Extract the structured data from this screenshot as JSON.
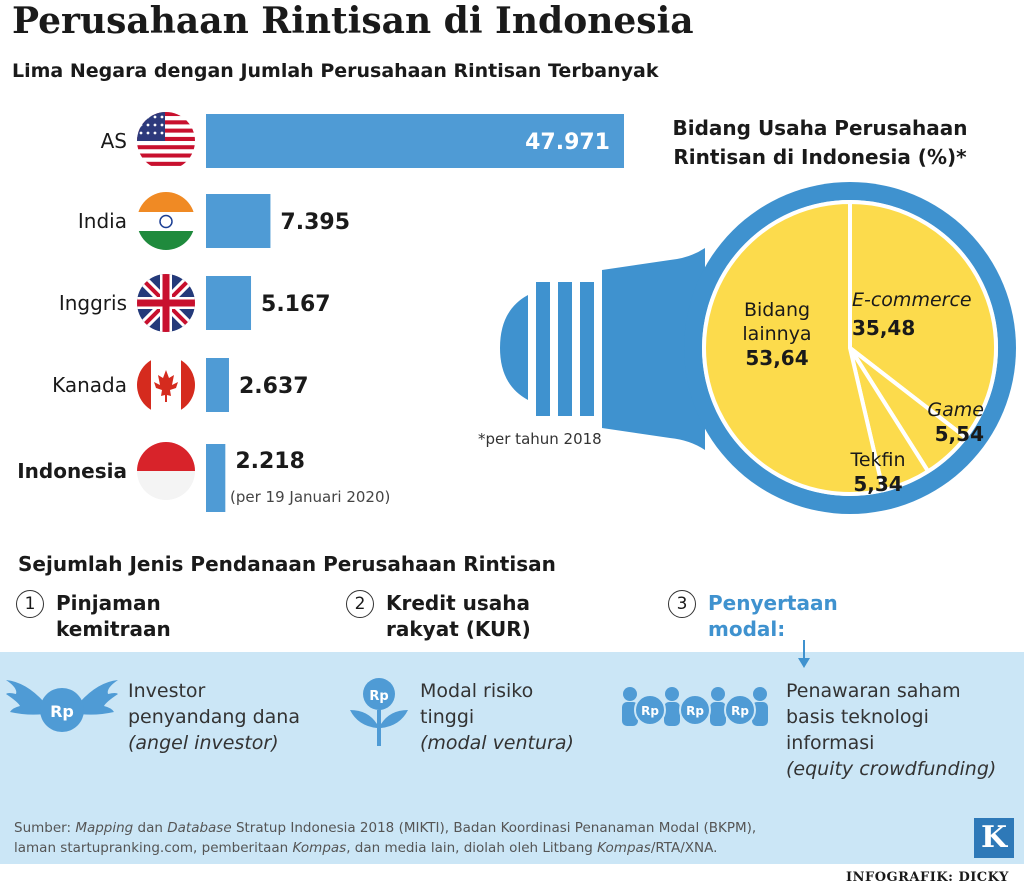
{
  "title": "Perusahaan Rintisan di Indonesia",
  "subtitle": "Lima Negara dengan Jumlah Perusahaan Rintisan Terbanyak",
  "chart_data": [
    {
      "type": "bar",
      "title": "Lima Negara dengan Jumlah Perusahaan Rintisan Terbanyak",
      "orientation": "horizontal",
      "categories": [
        "AS",
        "India",
        "Inggris",
        "Kanada",
        "Indonesia"
      ],
      "values": [
        47971,
        7395,
        5167,
        2637,
        2218
      ],
      "value_labels": [
        "47.971",
        "7.395",
        "5.167",
        "2.637",
        "2.218"
      ],
      "flags": [
        "us-flag-icon",
        "india-flag-icon",
        "uk-flag-icon",
        "canada-flag-icon",
        "indonesia-flag-icon"
      ],
      "bar_color": "#4f9bd5",
      "highlight": "Indonesia",
      "note": "(per 19 Januari 2020)"
    },
    {
      "type": "pie",
      "title": "Bidang Usaha Perusahaan Rintisan di Indonesia (%)*",
      "slices": [
        {
          "label": "E-commerce",
          "value": 35.48,
          "value_label": "35,48",
          "italic": true
        },
        {
          "label": "Game",
          "value": 5.54,
          "value_label": "5,54",
          "italic": true
        },
        {
          "label": "Tekfin",
          "value": 5.34,
          "value_label": "5,34",
          "italic": false
        },
        {
          "label": "Bidang lainnya",
          "value": 53.64,
          "value_label": "53,64",
          "italic": false
        }
      ],
      "slice_color": "#fcdb4c",
      "footnote": "*per tahun 2018"
    }
  ],
  "funding": {
    "title": "Sejumlah Jenis Pendanaan Perusahaan Rintisan",
    "items": [
      {
        "num": "1",
        "line1": "Pinjaman",
        "line2": "kemitraan"
      },
      {
        "num": "2",
        "line1": "Kredit usaha",
        "line2": "rakyat (KUR)"
      },
      {
        "num": "3",
        "line1": "Penyertaan",
        "line2": "modal:"
      }
    ],
    "details": [
      {
        "icon": "winged-rupiah-icon",
        "rp": "Rp",
        "line1": "Investor",
        "line2": "penyandang dana",
        "line3": "(angel investor)"
      },
      {
        "icon": "rupiah-plant-icon",
        "rp": "Rp",
        "line1": "Modal risiko",
        "line2": "tinggi",
        "line3": "(modal ventura)"
      },
      {
        "icon": "crowd-rupiah-icon",
        "rp": "Rp",
        "line1": "Penawaran saham",
        "line2": "basis teknologi",
        "line3": "informasi",
        "line4": "(equity crowdfunding)"
      }
    ]
  },
  "source": {
    "prefix": "Sumber: ",
    "it1": "Mapping",
    "t1": " dan ",
    "it2": "Database",
    "t2": " Stratup Indonesia 2018 (MIKTI), Badan Koordinasi Penanaman Modal (BKPM),",
    "t3": "laman startupranking.com, pemberitaan ",
    "it3": "Kompas",
    "t4": ", dan media lain, diolah oleh Litbang ",
    "it4": "Kompas",
    "t5": "/RTA/XNA."
  },
  "logo_letter": "K",
  "credit": "INFOGRAFIK: DICKY",
  "colors": {
    "accent_blue": "#4f9bd5",
    "bulb_blue": "#3f92cf",
    "pie_yellow": "#fcdb4c",
    "panel_bg": "#cbe6f6",
    "dark": "#1a1a1a"
  }
}
